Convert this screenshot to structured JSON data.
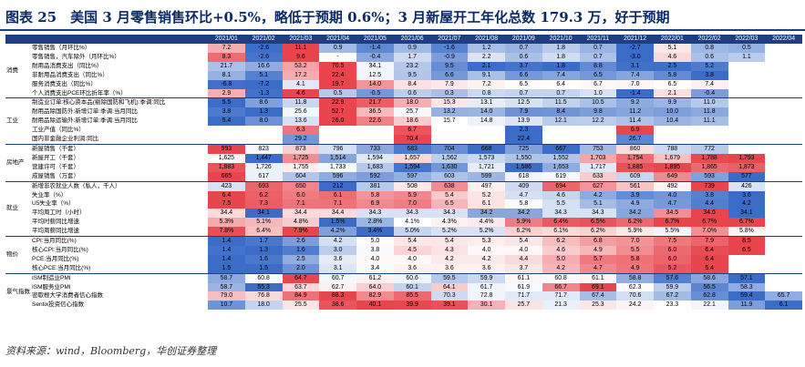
{
  "title": "图表 25　美国 3 月零售销售环比+0.5%，略低于预期 0.6%；3 月新屋开工年化总数 179.3 万，好于预期",
  "source_note": "资料来源：wind，Bloomberg，华创证券整理",
  "colors": {
    "header_bg": "#1f3e82",
    "title_color": "#0b2a67",
    "high": "#e8454d",
    "low": "#3a6cc8"
  },
  "columns": [
    "2021/01",
    "2021/02",
    "2021/03",
    "2021/04",
    "2021/05",
    "2021/06",
    "2021/07",
    "2021/08",
    "2021/09",
    "2021/10",
    "2021/11",
    "2021/12",
    "2022/01",
    "2022/02",
    "2022/03",
    "2022/04"
  ],
  "groups": [
    {
      "name": "消费",
      "rows": [
        {
          "label": "零售销售（月环比%）",
          "values": [
            "7.2",
            "-2.6",
            "11.1",
            "0.9",
            "-1.4",
            "0.9",
            "-1.6",
            "1.2",
            "0.7",
            "1.8",
            "0.7",
            "-2.7",
            "5.1",
            "0.8",
            "0.5",
            ""
          ]
        },
        {
          "label": "零售销售，汽车除外（月环比%）",
          "values": [
            "8.3",
            "-2.6",
            "9.6",
            "-",
            "-0.4",
            "1.7",
            "-0.9",
            "2.2",
            "0.6",
            "1.8",
            "0.7",
            "-3.0",
            "4.6",
            "0.6",
            "1.1",
            ""
          ]
        },
        {
          "label": "耐用品消费支出（同比%）",
          "values": [
            "21.7",
            "16.6",
            "53.2",
            "70.5",
            "34.1",
            "23.2",
            "9.5",
            "2.1",
            "3.7",
            "1.8",
            "8.8",
            "3.1",
            "2.5",
            "5.2",
            "",
            ""
          ]
        },
        {
          "label": "非耐用品消费支出（同比%）",
          "values": [
            "8.1",
            "5.1",
            "17.2",
            "22.4",
            "12.5",
            "9.5",
            "6.6",
            "9.1",
            "6.6",
            "7.4",
            "6.5",
            "7.4",
            "5.8",
            "3.8",
            "",
            ""
          ]
        },
        {
          "label": "服务消费支出（同比%）",
          "values": [
            "-6.8",
            "-7.2",
            "4.1",
            "19.7",
            "14.0",
            "8.4",
            "7.9",
            "7.2",
            "6.5",
            "6.4",
            "6.7",
            "7.0",
            "6.5",
            "7.4",
            "",
            ""
          ]
        },
        {
          "label": "个人消费支出PCE环比折年率（%）",
          "values": [
            "2.9",
            "-1.3",
            "4.6",
            "0.5",
            "-0.5",
            "0.6",
            "0.3",
            "0.8",
            "0.7",
            "0.7",
            "1.0",
            "-1.4",
            "2.1",
            "-0.4",
            "",
            ""
          ]
        }
      ]
    },
    {
      "name": "工业",
      "rows": [
        {
          "label": "制造业订单:核心资本品(剔除国防和飞机):季调:同比",
          "values": [
            "5.5",
            "8.6",
            "11.8",
            "22.9",
            "21.7",
            "18.0",
            "15.3",
            "13.1",
            "12.5",
            "11.5",
            "10.5",
            "9.2",
            "9.9",
            "11.0",
            "",
            ""
          ]
        },
        {
          "label": "耐用品除国防外:新增订单:季调:当月同比",
          "values": [
            "3.8",
            "1.3",
            "25.6",
            "52.7",
            "36.5",
            "25.7",
            "13.2",
            "14.0",
            "7.9",
            "8.4",
            "9.8",
            "11.2",
            "10.0",
            "11.8",
            "",
            ""
          ]
        },
        {
          "label": "耐用品除运输外:新增订单:季调:当月同比",
          "values": [
            "5.4",
            "8.0",
            "13.6",
            "26.0",
            "22.6",
            "18.6",
            "15.7",
            "14.8",
            "13.9",
            "12.1",
            "12.2",
            "11.4",
            "10.4",
            "11.1",
            "",
            ""
          ]
        },
        {
          "label": "工业产值（同比%）",
          "values": [
            "",
            "",
            "6.3",
            "",
            "",
            "6.7",
            "",
            "",
            "2.3",
            "",
            "",
            "6.9",
            "",
            "",
            "",
            ""
          ]
        },
        {
          "label": "国内非金融企业利润:同比",
          "values": [
            "",
            "",
            "29.2",
            "",
            "",
            "70.4",
            "",
            "",
            "22.4",
            "",
            "",
            "26.7",
            "",
            "",
            "",
            ""
          ]
        }
      ]
    },
    {
      "name": "房地产",
      "rows": [
        {
          "label": "新屋销售（千套）",
          "values": [
            "993",
            "823",
            "873",
            "796",
            "733",
            "683",
            "704",
            "668",
            "725",
            "667",
            "753",
            "860",
            "788",
            "772",
            "",
            ""
          ]
        },
        {
          "label": "新屋开工（千套）",
          "values": [
            "1,625",
            "1,447",
            "1,725",
            "1,514",
            "1,594",
            "1,657",
            "1,562",
            "1,573",
            "1,550",
            "1,552",
            "1,703",
            "1,754",
            "1,679",
            "1,788",
            "1,793",
            ""
          ]
        },
        {
          "label": "营建许可（千套）",
          "values": [
            "1,883",
            "1,726",
            "1,755",
            "1,733",
            "1,683",
            "1,594",
            "1,630",
            "1,721",
            "1,586",
            "1,653",
            "1,717",
            "1,885",
            "1,895",
            "1,865",
            "1,873",
            ""
          ]
        },
        {
          "label": "成屋销售（万套）",
          "values": [
            "665",
            "617",
            "604",
            "596",
            "592",
            "597",
            "603",
            "599",
            "618",
            "619",
            "633",
            "609",
            "649",
            "593",
            "577",
            ""
          ]
        }
      ]
    },
    {
      "name": "就业",
      "rows": [
        {
          "label": "新增非农就业人数（私人，千人）",
          "values": [
            "423",
            "693",
            "650",
            "212",
            "381",
            "508",
            "638",
            "497",
            "409",
            "694",
            "627",
            "561",
            "492",
            "739",
            "426",
            ""
          ]
        },
        {
          "label": "失业率（%）",
          "values": [
            "6.4",
            "6.2",
            "6.0",
            "6.1",
            "5.8",
            "5.9",
            "5.4",
            "5.2",
            "4.7",
            "4.6",
            "4.2",
            "3.9",
            "4.0",
            "3.8",
            "3.6",
            ""
          ]
        },
        {
          "label": "U5失业率（%）",
          "values": [
            "7.5",
            "7.3",
            "7.1",
            "7.1",
            "6.9",
            "7.0",
            "6.5",
            "6.1",
            "5.8",
            "5.5",
            "5.1",
            "4.9",
            "4.7",
            "4.4",
            "4.2",
            ""
          ]
        },
        {
          "label": "平均周工时（小时）",
          "values": [
            "34.4",
            "34.1",
            "34.4",
            "34.4",
            "34.3",
            "34.3",
            "34.3",
            "34.2",
            "34.2",
            "34.3",
            "34.3",
            "34.2",
            "34.5",
            "34.6",
            "34.1",
            ""
          ]
        },
        {
          "label": "平均时薪同比增速",
          "values": [
            "5.3%",
            "5.1%",
            "4.8%",
            "1.5%",
            "2.8%",
            "4.1%",
            "4.3%",
            "4.4%",
            "5.9%",
            "6.4%",
            "6.5%",
            "6.2%",
            "6.7%",
            "6.7%",
            "6.7%",
            ""
          ]
        },
        {
          "label": "平均周薪同比增速",
          "values": [
            "7.8%",
            "6.4%",
            "7.9%",
            "4.2%",
            "3.4%",
            "5.0%",
            "5.2%",
            "5.2%",
            "6.2%",
            "6.1%",
            "6.2%",
            "5.9%",
            "5.5%",
            "7.0%",
            "5.8%",
            ""
          ]
        }
      ]
    },
    {
      "name": "物价",
      "rows": [
        {
          "label": "CPI:当月同比(%)",
          "values": [
            "1.4",
            "1.7",
            "2.6",
            "4.2",
            "5.0",
            "5.4",
            "5.4",
            "5.3",
            "5.4",
            "6.2",
            "6.8",
            "7.0",
            "7.5",
            "7.9",
            "8.5",
            ""
          ]
        },
        {
          "label": "核心CPI:当月同比(%)",
          "values": [
            "1.4",
            "1.3",
            "1.6",
            "3.0",
            "3.8",
            "4.5",
            "4.3",
            "4.0",
            "4.0",
            "4.6",
            "4.9",
            "5.5",
            "6.0",
            "6.4",
            "6.5",
            ""
          ]
        },
        {
          "label": "PCE:当月同比(%)",
          "values": [
            "1.4",
            "1.6",
            "2.5",
            "3.6",
            "4.0",
            "4.0",
            "4.2",
            "4.2",
            "4.4",
            "5.0",
            "5.7",
            "5.8",
            "6.0",
            "6.4",
            "",
            ""
          ]
        },
        {
          "label": "核心PCE:当月同比(%)",
          "values": [
            "1.5",
            "1.5",
            "2.0",
            "3.1",
            "3.4",
            "3.6",
            "3.6",
            "3.6",
            "3.7",
            "4.2",
            "4.7",
            "4.9",
            "5.2",
            "5.4",
            "",
            ""
          ]
        }
      ]
    },
    {
      "name": "景气指数",
      "rows": [
        {
          "label": "ISM制造业PMI",
          "values": [
            "58.7",
            "60.8",
            "64.7",
            "60.7",
            "61.2",
            "60.6",
            "59.5",
            "59.9",
            "61.1",
            "60.8",
            "61.1",
            "58.8",
            "57.6",
            "58.6",
            "57.1",
            ""
          ]
        },
        {
          "label": "ISM服务业PMI",
          "values": [
            "58.7",
            "55.3",
            "63.7",
            "62.7",
            "64.0",
            "60.1",
            "64.1",
            "61.7",
            "61.9",
            "66.7",
            "69.1",
            "62.3",
            "59.9",
            "56.5",
            "58.3",
            ""
          ]
        },
        {
          "label": "密歇根大学消费者信心指数",
          "values": [
            "79.0",
            "76.8",
            "84.9",
            "88.3",
            "82.9",
            "85.5",
            "70.3",
            "72.8",
            "71.7",
            "71.7",
            "67.4",
            "70.6",
            "67.2",
            "62.8",
            "59.4",
            "65.7"
          ]
        },
        {
          "label": "Sentix投资信心指数",
          "values": [
            "10.7",
            "18.0",
            "25.5",
            "38.6",
            "40.1",
            "39.9",
            "39.1",
            "30.1",
            "25.7",
            "21.3",
            "25.3",
            "24.2",
            "23.3",
            "22.1",
            "11.9",
            "6.1"
          ]
        }
      ]
    }
  ]
}
